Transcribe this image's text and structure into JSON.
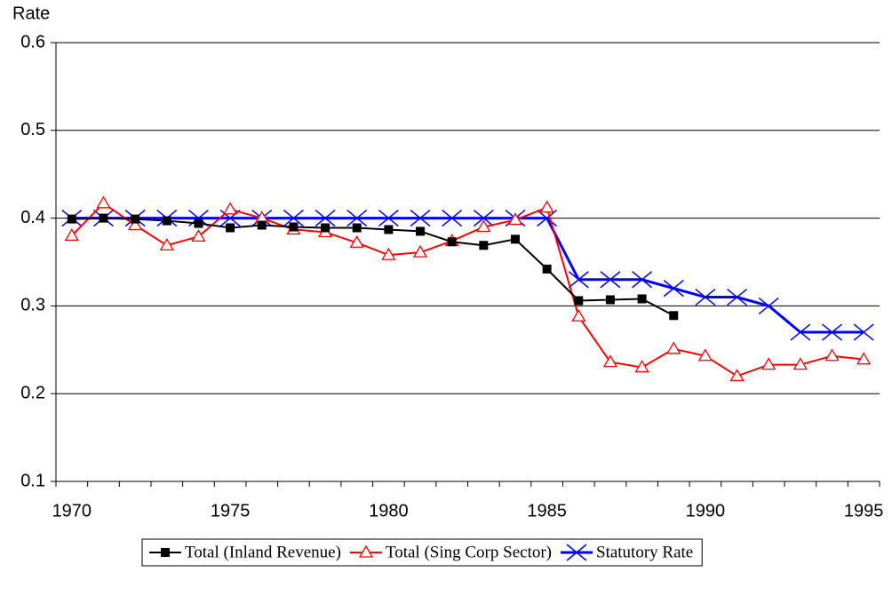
{
  "chart_data": {
    "type": "line",
    "y_label": "Rate",
    "categories": [
      "1970",
      null,
      null,
      null,
      null,
      "1975",
      null,
      null,
      null,
      null,
      "1980",
      null,
      null,
      null,
      null,
      "1985",
      null,
      null,
      null,
      null,
      "1990",
      null,
      null,
      null,
      null,
      "1995"
    ],
    "series": [
      {
        "name": "Total (Inland Revenue)",
        "color": "#000000",
        "marker": "square",
        "values": [
          0.399,
          0.4,
          0.399,
          0.397,
          0.394,
          0.389,
          0.392,
          0.39,
          0.389,
          0.389,
          0.387,
          0.385,
          0.373,
          0.369,
          0.376,
          0.342,
          0.306,
          0.307,
          0.308,
          0.289,
          null,
          null,
          null,
          null,
          null,
          null
        ]
      },
      {
        "name": "Total (Sing Corp Sector)",
        "color": "#ff0000",
        "marker": "triangle",
        "values": [
          0.38,
          0.417,
          0.392,
          0.369,
          0.379,
          0.41,
          0.4,
          0.387,
          0.384,
          0.372,
          0.358,
          0.361,
          0.374,
          0.39,
          0.398,
          0.412,
          0.288,
          0.236,
          0.23,
          0.251,
          0.243,
          0.22,
          0.233,
          0.233,
          0.243,
          0.239
        ]
      },
      {
        "name": "Statutory Rate",
        "color": "#0000ff",
        "marker": "x",
        "values": [
          0.4,
          0.4,
          0.4,
          0.4,
          0.4,
          0.4,
          0.4,
          0.4,
          0.4,
          0.4,
          0.4,
          0.4,
          0.4,
          0.4,
          0.4,
          0.4,
          0.33,
          0.33,
          0.33,
          0.32,
          0.31,
          0.31,
          0.3,
          0.27,
          0.27,
          0.27
        ]
      }
    ],
    "ylim": [
      0.1,
      0.6
    ],
    "yticks": [
      0.1,
      0.2,
      0.3,
      0.4,
      0.5,
      0.6
    ],
    "grid": true,
    "legend": "bottom"
  }
}
